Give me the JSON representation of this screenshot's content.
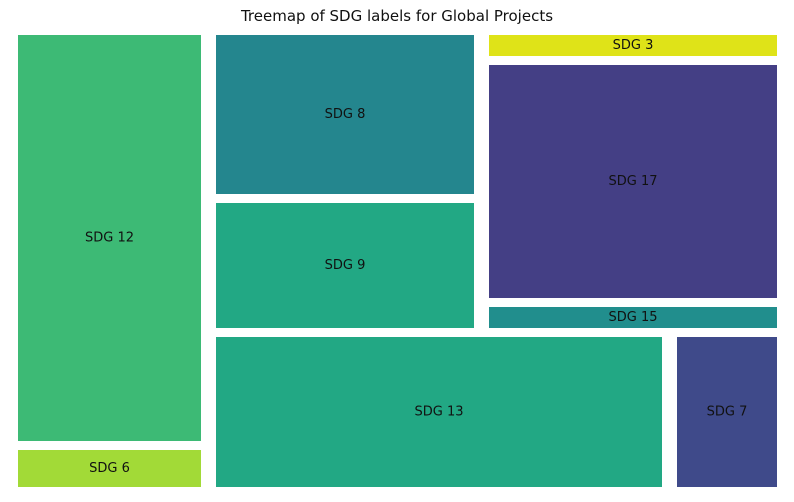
{
  "chart_data": {
    "type": "treemap",
    "title": "Treemap of SDG labels for Global Projects",
    "tiles": [
      {
        "label": "SDG 12",
        "color": "#3dba75"
      },
      {
        "label": "SDG 6",
        "color": "#a2da37"
      },
      {
        "label": "SDG 8",
        "color": "#24868e"
      },
      {
        "label": "SDG 9",
        "color": "#22a884"
      },
      {
        "label": "SDG 13",
        "color": "#22a884"
      },
      {
        "label": "SDG 3",
        "color": "#dfe318"
      },
      {
        "label": "SDG 17",
        "color": "#443f85"
      },
      {
        "label": "SDG 15",
        "color": "#218e8d"
      },
      {
        "label": "SDG 7",
        "color": "#3f4a8a"
      }
    ]
  }
}
